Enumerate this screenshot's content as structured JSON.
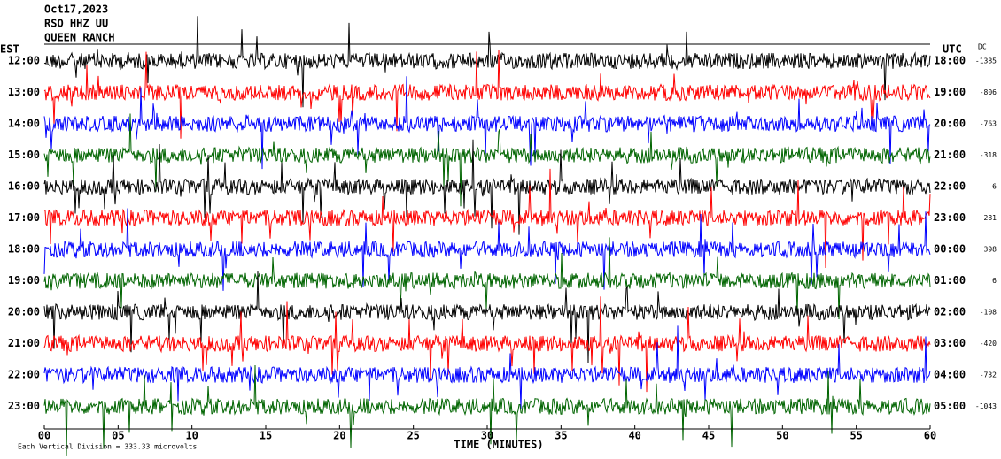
{
  "header": {
    "lines": [
      "Oct17,2023",
      "RSO HHZ UU",
      "QUEEN RANCH"
    ]
  },
  "left_axis": {
    "title": "EST",
    "labels": [
      "12:00",
      "13:00",
      "14:00",
      "15:00",
      "16:00",
      "17:00",
      "18:00",
      "19:00",
      "20:00",
      "21:00",
      "22:00",
      "23:00"
    ]
  },
  "right_axis": {
    "title": "UTC",
    "labels": [
      "18:00",
      "19:00",
      "20:00",
      "21:00",
      "22:00",
      "23:00",
      "00:00",
      "01:00",
      "02:00",
      "03:00",
      "04:00",
      "05:00"
    ]
  },
  "dc": {
    "title": "DC",
    "values": [
      -1385,
      -806,
      -763,
      -318,
      6,
      281,
      398,
      6,
      -108,
      -420,
      -732,
      -1043
    ]
  },
  "x_axis": {
    "title": "TIME (MINUTES)",
    "ticks": [
      "00",
      "05",
      "10",
      "15",
      "20",
      "25",
      "30",
      "35",
      "40",
      "45",
      "50",
      "55",
      "60"
    ]
  },
  "footer": {
    "note": "Each Vertical Division = 333.33 microvolts"
  },
  "trace_colors": [
    "#000000",
    "#ff0000",
    "#0000ff",
    "#006400"
  ]
}
